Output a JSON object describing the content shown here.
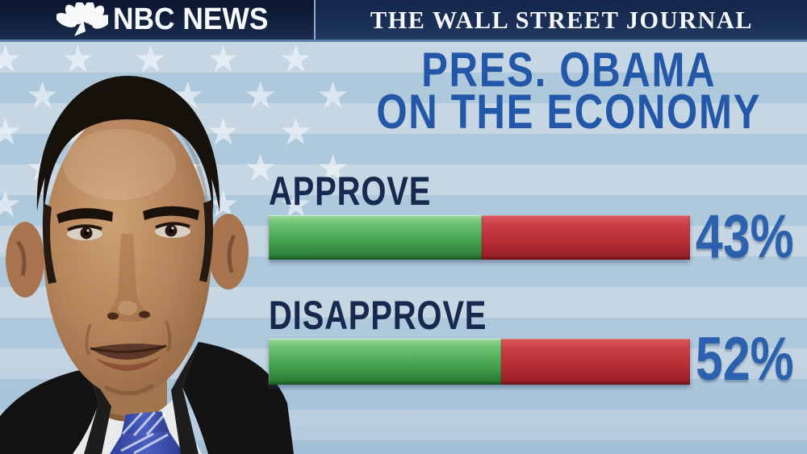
{
  "header": {
    "nbc_logo_icon": "nbc-peacock-icon",
    "nbc_name": "NBC NEWS",
    "wsj_name": "THE WALL STREET JOURNAL"
  },
  "title": {
    "line1": "PRES. OBAMA",
    "line2": "ON THE ECONOMY"
  },
  "portrait": {
    "subject": "President Barack Obama"
  },
  "chart_data": {
    "type": "bar",
    "title": "PRES. OBAMA ON THE ECONOMY",
    "categories": [
      "APPROVE",
      "DISAPPROVE"
    ],
    "values": [
      43,
      52
    ],
    "value_labels": [
      "43%",
      "52%"
    ],
    "green_fill_fraction": [
      0.505,
      0.552
    ],
    "orientation": "horizontal",
    "legend": "none",
    "colors": {
      "bar_green": "#47a551",
      "bar_red": "#b92f37",
      "category_label": "#16294e",
      "value_label": "#2b61ad",
      "headline_blue": "#2357a7",
      "topbar_navy": "#13223f",
      "background_blue": "#aec8dc",
      "stripe_light": "#c7d6e3",
      "star_white": "#f5fafd"
    }
  }
}
